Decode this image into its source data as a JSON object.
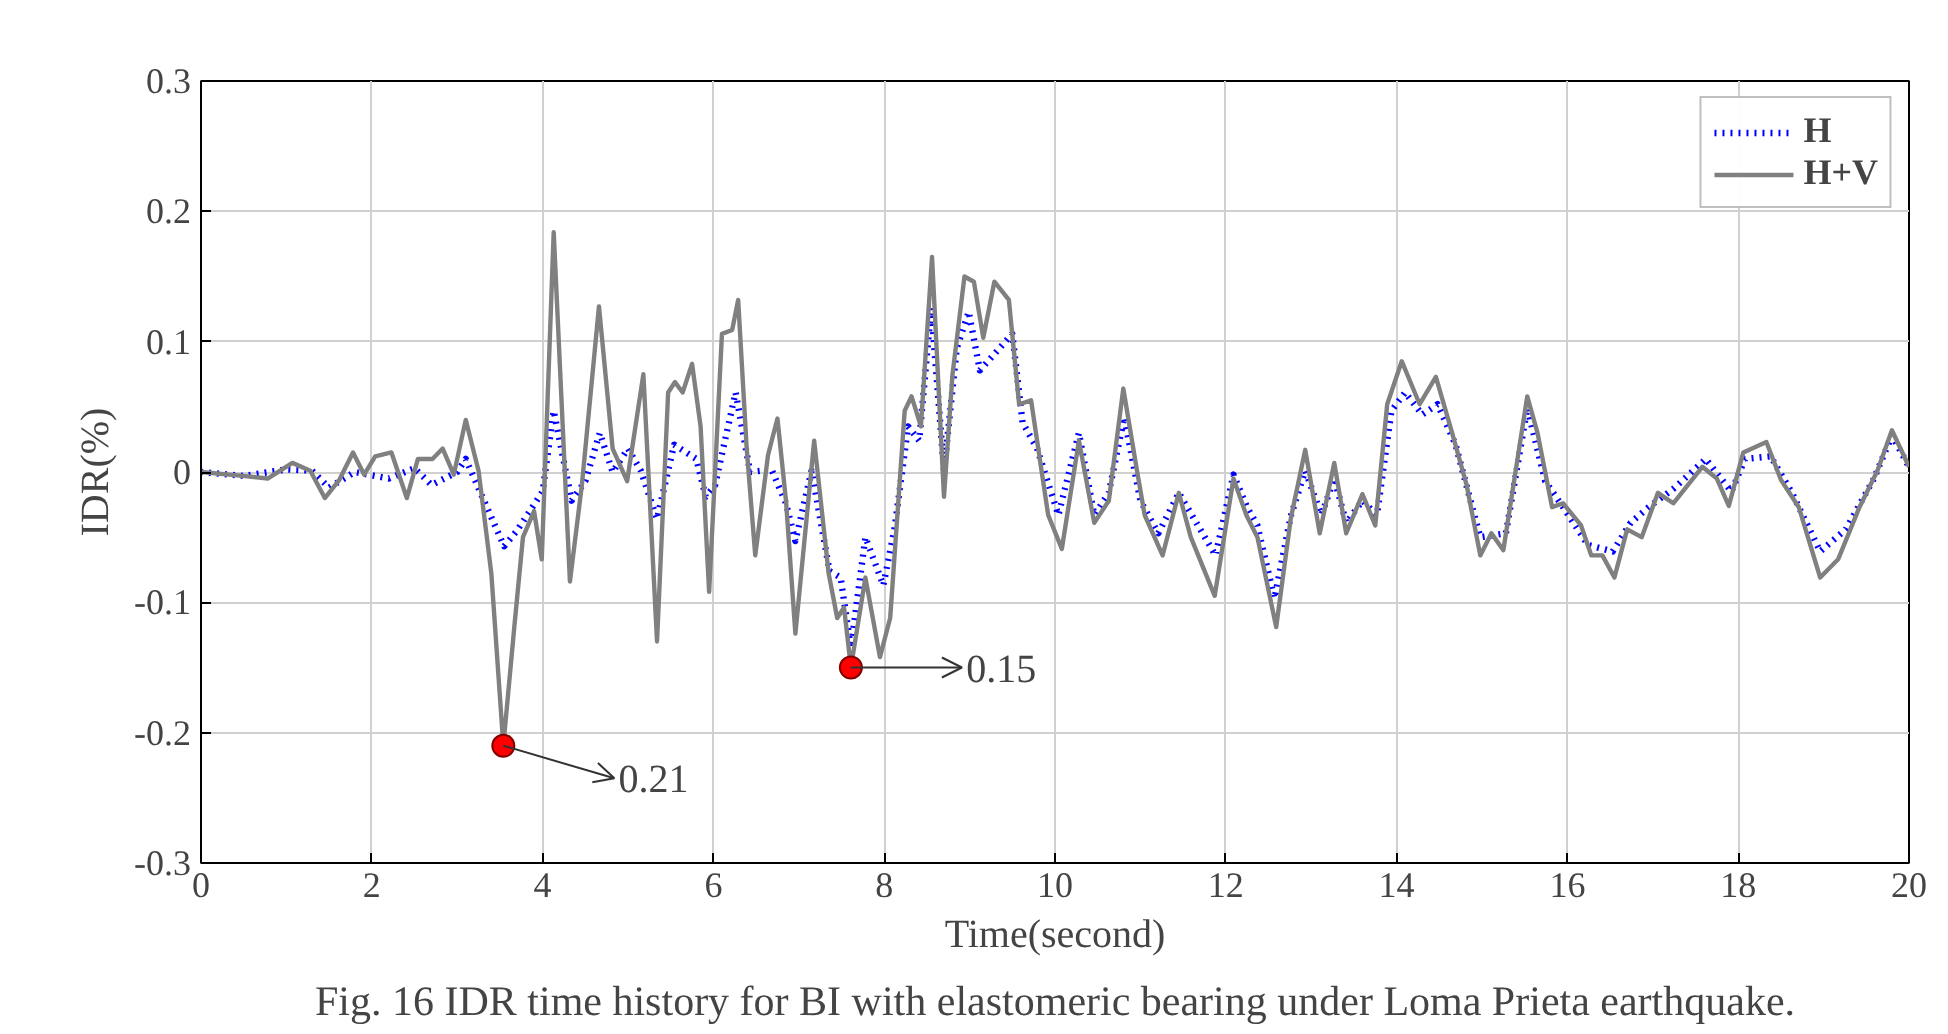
{
  "chart_data": {
    "type": "line",
    "xlabel": "Time(second)",
    "ylabel": "IDR(%)",
    "xlim": [
      0,
      20
    ],
    "ylim": [
      -0.3,
      0.3
    ],
    "xticks": [
      0,
      2,
      4,
      6,
      8,
      10,
      12,
      14,
      16,
      18,
      20
    ],
    "yticks": [
      -0.3,
      -0.2,
      -0.1,
      0,
      0.1,
      0.2,
      0.3
    ],
    "grid": true,
    "legend": "top right",
    "marker": "none",
    "series": [
      {
        "name": "H",
        "color": "#0000ff",
        "line_style": "dotted",
        "x": [
          0,
          0.5,
          1.0,
          1.3,
          1.5,
          1.8,
          2.2,
          2.5,
          2.7,
          3.0,
          3.1,
          3.3,
          3.55,
          3.7,
          3.9,
          4.0,
          4.13,
          4.34,
          4.5,
          4.67,
          4.82,
          5.0,
          5.15,
          5.34,
          5.54,
          5.8,
          5.91,
          6.02,
          6.26,
          6.43,
          6.68,
          6.85,
          6.96,
          7.15,
          7.36,
          7.49,
          7.61,
          7.78,
          7.99,
          8.12,
          8.28,
          8.41,
          8.55,
          8.7,
          8.85,
          8.99,
          9.12,
          9.27,
          9.5,
          9.62,
          9.79,
          10.04,
          10.28,
          10.46,
          10.63,
          10.81,
          11.0,
          11.21,
          11.45,
          11.88,
          12.09,
          12.25,
          12.37,
          12.57,
          12.76,
          12.93,
          13.12,
          13.27,
          13.41,
          13.6,
          13.77,
          13.94,
          14.1,
          14.3,
          14.48,
          14.69,
          14.98,
          15.28,
          15.53,
          15.74,
          15.95,
          16.24,
          16.53,
          16.74,
          16.95,
          17.24,
          17.62,
          17.92,
          18.08,
          18.38,
          18.63,
          18.96,
          19.26,
          19.59,
          19.8,
          20
        ],
        "values": [
          0,
          -0.003,
          0.002,
          0.001,
          -0.012,
          0.0,
          -0.005,
          0.003,
          -0.01,
          0.0,
          0.01,
          -0.02,
          -0.057,
          -0.045,
          -0.025,
          -0.015,
          0.047,
          -0.022,
          -0.007,
          0.03,
          0.0,
          0.018,
          0.001,
          -0.036,
          0.021,
          0.01,
          -0.019,
          -0.01,
          0.061,
          0.0,
          0.002,
          -0.024,
          -0.053,
          0.001,
          -0.076,
          -0.081,
          -0.135,
          -0.05,
          -0.087,
          -0.044,
          0.035,
          0.024,
          0.126,
          0.001,
          0.095,
          0.123,
          0.078,
          0.089,
          0.106,
          0.038,
          0.018,
          -0.033,
          0.03,
          -0.033,
          -0.016,
          0.042,
          -0.022,
          -0.047,
          -0.016,
          -0.064,
          -0.002,
          -0.027,
          -0.041,
          -0.097,
          -0.034,
          0.001,
          -0.033,
          -0.005,
          -0.039,
          -0.022,
          -0.033,
          0.047,
          0.061,
          0.044,
          0.052,
          0.021,
          -0.05,
          -0.047,
          0.049,
          -0.007,
          -0.027,
          -0.056,
          -0.061,
          -0.039,
          -0.027,
          -0.013,
          0.01,
          -0.015,
          0.01,
          0.012,
          -0.016,
          -0.061,
          -0.044,
          -0.005,
          0.028,
          0.004
        ]
      },
      {
        "name": "H+V",
        "color": "#808080",
        "line_style": "solid",
        "x": [
          0,
          0.49,
          0.78,
          1.07,
          1.28,
          1.45,
          1.62,
          1.78,
          1.91,
          2.04,
          2.23,
          2.41,
          2.54,
          2.71,
          2.83,
          2.96,
          3.1,
          3.25,
          3.4,
          3.54,
          3.67,
          3.77,
          3.9,
          3.99,
          4.13,
          4.32,
          4.46,
          4.66,
          4.82,
          4.99,
          5.18,
          5.34,
          5.47,
          5.55,
          5.64,
          5.75,
          5.85,
          5.95,
          6.1,
          6.22,
          6.29,
          6.39,
          6.49,
          6.64,
          6.75,
          6.85,
          6.96,
          7.18,
          7.35,
          7.45,
          7.53,
          7.61,
          7.78,
          7.95,
          8.07,
          8.24,
          8.32,
          8.43,
          8.56,
          8.7,
          8.8,
          8.94,
          9.05,
          9.16,
          9.29,
          9.46,
          9.58,
          9.72,
          9.92,
          10.08,
          10.28,
          10.46,
          10.63,
          10.8,
          10.96,
          11.05,
          11.26,
          11.45,
          11.59,
          11.87,
          12.09,
          12.24,
          12.37,
          12.59,
          12.76,
          12.93,
          13.1,
          13.27,
          13.41,
          13.6,
          13.75,
          13.89,
          14.06,
          14.27,
          14.46,
          14.65,
          14.82,
          14.98,
          15.11,
          15.25,
          15.53,
          15.65,
          15.82,
          15.95,
          16.16,
          16.28,
          16.41,
          16.55,
          16.7,
          16.87,
          17.06,
          17.24,
          17.58,
          17.75,
          17.89,
          18.06,
          18.33,
          18.5,
          18.71,
          18.96,
          19.17,
          19.42,
          19.63,
          19.8,
          20
        ],
        "values": [
          0,
          -0.003,
          -0.005,
          0.007,
          0.001,
          -0.02,
          -0.006,
          0.015,
          -0.002,
          0.012,
          0.015,
          -0.02,
          0.01,
          0.01,
          0.018,
          -0.002,
          0.04,
          0.001,
          -0.078,
          -0.21,
          -0.118,
          -0.05,
          -0.03,
          -0.067,
          0.184,
          -0.084,
          -0.01,
          0.127,
          0.018,
          -0.007,
          0.075,
          -0.13,
          0.061,
          0.069,
          0.061,
          0.083,
          0.035,
          -0.092,
          0.106,
          0.109,
          0.132,
          0.018,
          -0.064,
          0.013,
          0.041,
          -0.022,
          -0.124,
          0.024,
          -0.078,
          -0.112,
          -0.104,
          -0.15,
          -0.081,
          -0.142,
          -0.112,
          0.047,
          0.058,
          0.035,
          0.165,
          -0.019,
          0.075,
          0.15,
          0.146,
          0.103,
          0.146,
          0.132,
          0.052,
          0.055,
          -0.033,
          -0.059,
          0.024,
          -0.039,
          -0.022,
          0.064,
          0.001,
          -0.033,
          -0.064,
          -0.016,
          -0.05,
          -0.095,
          -0.005,
          -0.033,
          -0.05,
          -0.119,
          -0.036,
          0.017,
          -0.047,
          0.007,
          -0.047,
          -0.017,
          -0.041,
          0.052,
          0.085,
          0.052,
          0.073,
          0.03,
          -0.01,
          -0.064,
          -0.047,
          -0.06,
          0.058,
          0.03,
          -0.027,
          -0.024,
          -0.041,
          -0.064,
          -0.064,
          -0.081,
          -0.044,
          -0.05,
          -0.016,
          -0.024,
          0.004,
          -0.005,
          -0.026,
          0.015,
          0.023,
          -0.006,
          -0.027,
          -0.081,
          -0.067,
          -0.027,
          0.001,
          0.032,
          0.004
        ]
      }
    ],
    "annotations": [
      {
        "text": "0.21",
        "x": 3.54,
        "y": -0.21
      },
      {
        "text": "0.15",
        "x": 7.61,
        "y": -0.15
      },
      "Fig. 16 IDR time history for BI with elastomeric bearing under Loma Prieta earthquake."
    ]
  }
}
